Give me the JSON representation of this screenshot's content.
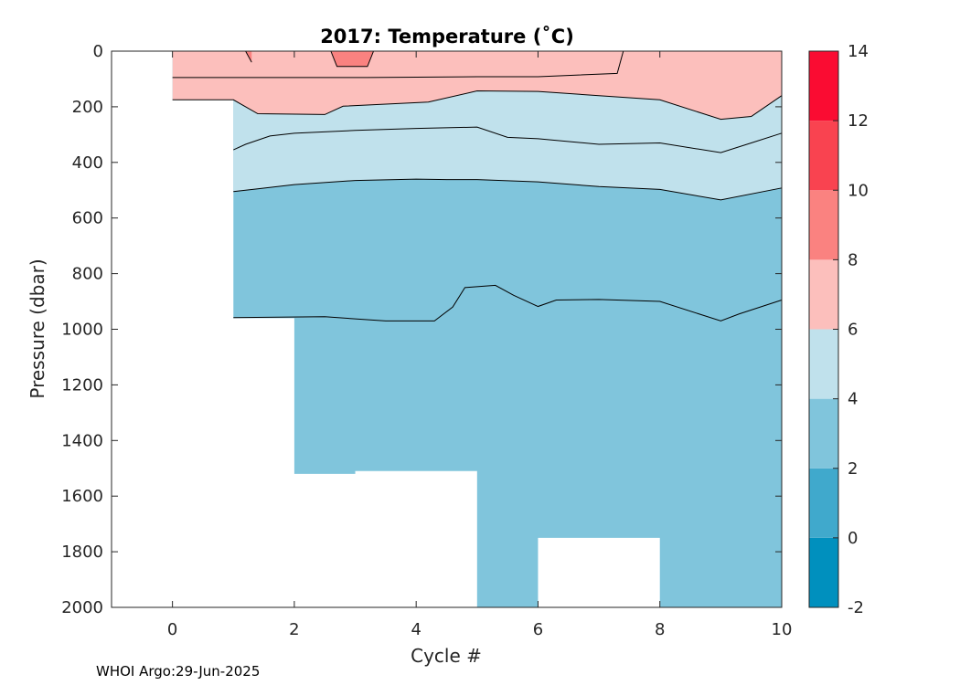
{
  "chart_data": {
    "type": "heatmap",
    "title": "2017:  Temperature (˚C)",
    "xlabel": "Cycle #",
    "ylabel": "Pressure (dbar)",
    "xlim": [
      -1,
      10
    ],
    "ylim": [
      0,
      2000
    ],
    "y_reversed": true,
    "xticks": [
      0,
      2,
      4,
      6,
      8,
      10
    ],
    "yticks": [
      0,
      200,
      400,
      600,
      800,
      1000,
      1200,
      1400,
      1600,
      1800,
      2000
    ],
    "colorbar": {
      "levels": [
        -2,
        0,
        2,
        4,
        6,
        8,
        10,
        12,
        14
      ],
      "tick_labels": [
        "-2",
        "0",
        "2",
        "4",
        "6",
        "8",
        "10",
        "12",
        "14"
      ],
      "colors": [
        "#0090be",
        "#40a9cc",
        "#80c5dc",
        "#c0e1ec",
        "#fcbfbc",
        "#fa8280",
        "#f94350",
        "#fa0c32"
      ]
    },
    "coverage": [
      {
        "x_from": 0,
        "x_to": 1,
        "max_pressure": 175
      },
      {
        "x_from": 1,
        "x_to": 2,
        "max_pressure": 960
      },
      {
        "x_from": 2,
        "x_to": 3,
        "max_pressure": 1520
      },
      {
        "x_from": 3,
        "x_to": 5,
        "max_pressure": 1510
      },
      {
        "x_from": 5,
        "x_to": 6,
        "max_pressure": 2000
      },
      {
        "x_from": 6,
        "x_to": 8,
        "max_pressure": 1750
      },
      {
        "x_from": 8,
        "x_to": 10,
        "max_pressure": 2000
      }
    ],
    "isotherms": [
      {
        "level": 8,
        "x": [
          0,
          1.2,
          1.3
        ],
        "y": [
          0,
          0,
          40
        ],
        "closed_top": true
      },
      {
        "level": 8,
        "x": [
          2.6,
          2.7,
          3.2,
          3.3
        ],
        "y": [
          0,
          55,
          55,
          0
        ],
        "closed_top": true
      },
      {
        "level": 6,
        "x": [
          0,
          2.3,
          3.2,
          5,
          6,
          7.3,
          7.4
        ],
        "y": [
          95,
          95,
          95,
          92,
          92,
          80,
          0
        ]
      },
      {
        "level": 6,
        "x": [
          0,
          1,
          1.4,
          2.5,
          2.8,
          4.2,
          5,
          6,
          7,
          8,
          9,
          9.5,
          10
        ],
        "y": [
          175,
          175,
          225,
          228,
          198,
          183,
          143,
          145,
          160,
          175,
          245,
          235,
          160
        ]
      },
      {
        "level": 4,
        "x": [
          1,
          1.2,
          1.6,
          2,
          3,
          4,
          5,
          5.5,
          6,
          7,
          8,
          9,
          9.5,
          10
        ],
        "y": [
          355,
          335,
          305,
          295,
          285,
          278,
          273,
          310,
          315,
          335,
          330,
          365,
          330,
          295
        ]
      },
      {
        "level": 2,
        "x": [
          1,
          1.4,
          2,
          3,
          4,
          4.5,
          5,
          6,
          7,
          8,
          9,
          10
        ],
        "y": [
          505,
          495,
          480,
          465,
          460,
          462,
          462,
          470,
          487,
          497,
          535,
          492
        ]
      },
      {
        "level": 2,
        "x": [
          1,
          2.5,
          3.5,
          4.3,
          4.6,
          4.8,
          5.3,
          5.6,
          6,
          6.3,
          7,
          8,
          9,
          9.3,
          10
        ],
        "y": [
          958,
          955,
          970,
          970,
          920,
          850,
          842,
          878,
          918,
          895,
          893,
          900,
          970,
          945,
          895
        ]
      }
    ]
  },
  "footer": {
    "credit": "WHOI Argo:29-Jun-2025"
  }
}
